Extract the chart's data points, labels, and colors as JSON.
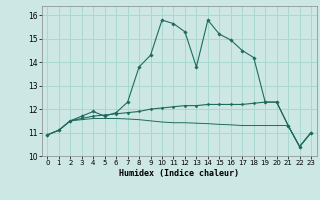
{
  "xlabel": "Humidex (Indice chaleur)",
  "bg_color": "#cde8e4",
  "grid_color": "#a8d8d0",
  "line_color": "#1e6b5e",
  "xlim": [
    -0.5,
    23.5
  ],
  "ylim": [
    10.0,
    16.4
  ],
  "yticks": [
    10,
    11,
    12,
    13,
    14,
    15,
    16
  ],
  "xticks": [
    0,
    1,
    2,
    3,
    4,
    5,
    6,
    7,
    8,
    9,
    10,
    11,
    12,
    13,
    14,
    15,
    16,
    17,
    18,
    19,
    20,
    21,
    22,
    23
  ],
  "line1_x": [
    0,
    1,
    2,
    3,
    4,
    5,
    6,
    7,
    8,
    9,
    10,
    11,
    12,
    13,
    14,
    15,
    16,
    17,
    18,
    19,
    20,
    21,
    22,
    23
  ],
  "line1_y": [
    10.9,
    11.1,
    11.5,
    11.7,
    11.9,
    11.7,
    11.85,
    12.3,
    13.8,
    14.3,
    15.8,
    15.65,
    15.3,
    13.8,
    15.8,
    15.2,
    14.95,
    14.5,
    14.2,
    12.3,
    12.3,
    11.3,
    10.4,
    11.0
  ],
  "line2_x": [
    0,
    1,
    2,
    3,
    4,
    5,
    6,
    7,
    8,
    9,
    10,
    11,
    12,
    13,
    14,
    15,
    16,
    17,
    18,
    19,
    20,
    21,
    22,
    23
  ],
  "line2_y": [
    10.9,
    11.1,
    11.5,
    11.6,
    11.7,
    11.75,
    11.8,
    11.85,
    11.9,
    12.0,
    12.05,
    12.1,
    12.15,
    12.15,
    12.2,
    12.2,
    12.2,
    12.2,
    12.25,
    12.3,
    12.3,
    11.3,
    10.4,
    11.0
  ],
  "line3_x": [
    0,
    1,
    2,
    3,
    4,
    5,
    6,
    7,
    8,
    9,
    10,
    11,
    12,
    13,
    14,
    15,
    16,
    17,
    18,
    19,
    20,
    21,
    22,
    23
  ],
  "line3_y": [
    10.9,
    11.1,
    11.5,
    11.55,
    11.6,
    11.6,
    11.6,
    11.58,
    11.55,
    11.5,
    11.45,
    11.42,
    11.42,
    11.4,
    11.38,
    11.35,
    11.33,
    11.3,
    11.3,
    11.3,
    11.3,
    11.3,
    10.4,
    11.0
  ]
}
